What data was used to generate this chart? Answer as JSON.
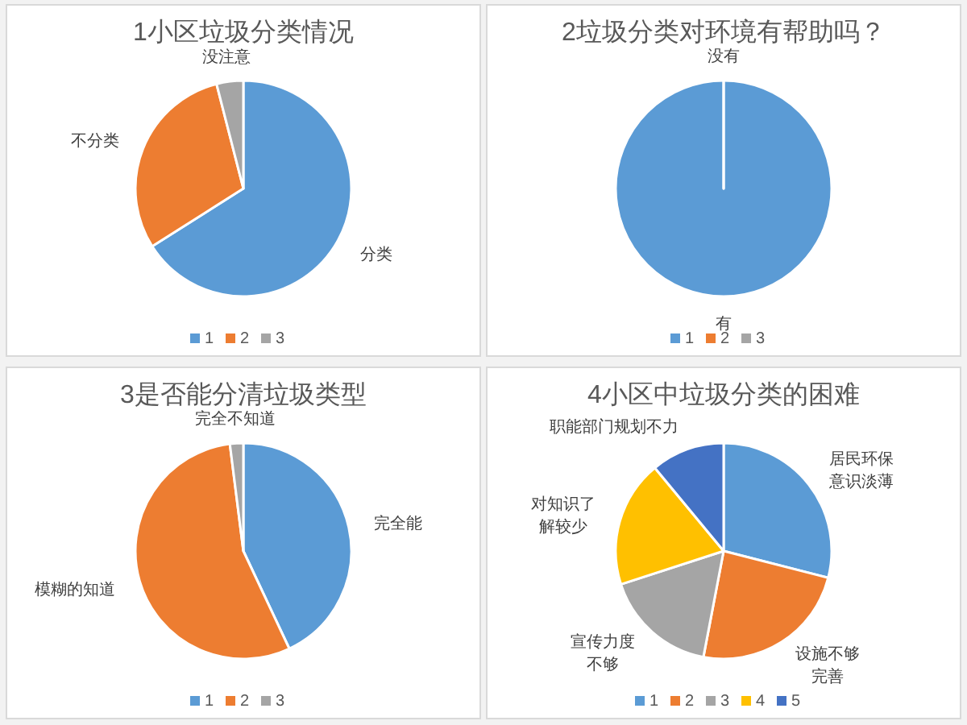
{
  "chart_data": [
    {
      "type": "pie",
      "title": "1小区垃圾分类情况",
      "categories": [
        "1",
        "2",
        "3"
      ],
      "values": [
        66,
        30,
        4
      ],
      "colors": [
        "#5b9bd5",
        "#ed7d31",
        "#a5a5a5"
      ],
      "value_labels": [
        "分类",
        "不分类",
        "没注意"
      ],
      "legend": "bottom"
    },
    {
      "type": "pie",
      "title": "2垃圾分类对环境有帮助吗？",
      "categories": [
        "1",
        "2",
        "3"
      ],
      "values": [
        100,
        0,
        0
      ],
      "colors": [
        "#5b9bd5",
        "#ed7d31",
        "#a5a5a5"
      ],
      "value_labels": [
        "有",
        "没有",
        null
      ],
      "legend": "bottom"
    },
    {
      "type": "pie",
      "title": "3是否能分清垃圾类型",
      "categories": [
        "1",
        "2",
        "3"
      ],
      "values": [
        43,
        55,
        2
      ],
      "colors": [
        "#5b9bd5",
        "#ed7d31",
        "#a5a5a5"
      ],
      "value_labels": [
        "完全能",
        "模糊的知道",
        "完全不知道"
      ],
      "legend": "bottom"
    },
    {
      "type": "pie",
      "title": "4小区中垃圾分类的困难",
      "categories": [
        "1",
        "2",
        "3",
        "4",
        "5"
      ],
      "values": [
        29,
        24,
        17,
        19,
        11
      ],
      "colors": [
        "#5b9bd5",
        "#ed7d31",
        "#a5a5a5",
        "#ffc000",
        "#4472c4"
      ],
      "value_labels": [
        "居民环保意识淡薄",
        "设施不够完善",
        "宣传力度不够",
        "对知识了解较少",
        "职能部门规划不力"
      ],
      "legend": "bottom"
    }
  ]
}
